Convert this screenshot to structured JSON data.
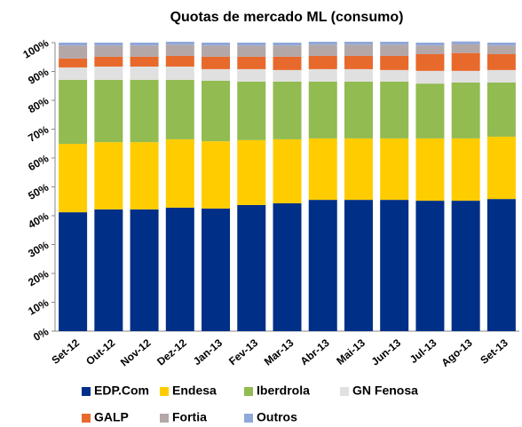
{
  "chart_data": {
    "type": "stacked_bar",
    "title": "Quotas de mercado ML (consumo)",
    "categories": [
      "Set-12",
      "Out-12",
      "Nov-12",
      "Dez-12",
      "Jan-13",
      "Fev-13",
      "Mar-13",
      "Abr-13",
      "Mai-13",
      "Jun-13",
      "Jul-13",
      "Ago-13",
      "Set-13"
    ],
    "series": [
      {
        "name": "EDP.Com",
        "color": "#002f87",
        "values": [
          41.2,
          42.2,
          42.2,
          42.8,
          42.5,
          43.7,
          44.3,
          45.5,
          45.5,
          45.5,
          45.2,
          45.2,
          45.8
        ]
      },
      {
        "name": "Endesa",
        "color": "#ffcc00",
        "values": [
          23.7,
          23.3,
          23.3,
          23.7,
          23.3,
          22.5,
          22.2,
          21.3,
          21.3,
          21.3,
          21.6,
          21.6,
          21.6
        ]
      },
      {
        "name": "Iberdrola",
        "color": "#92bb52",
        "values": [
          22.2,
          21.6,
          21.6,
          20.6,
          21.0,
          20.3,
          20.0,
          19.7,
          19.7,
          19.7,
          19.0,
          19.4,
          18.8
        ]
      },
      {
        "name": "GN Fenosa",
        "color": "#e0e0e0",
        "values": [
          4.3,
          4.6,
          4.6,
          4.6,
          4.0,
          4.3,
          4.0,
          4.3,
          4.3,
          4.0,
          4.4,
          4.0,
          4.3
        ]
      },
      {
        "name": "GALP",
        "color": "#e8692c",
        "values": [
          3.1,
          3.4,
          3.4,
          3.7,
          4.3,
          4.3,
          4.6,
          4.6,
          4.6,
          4.9,
          5.8,
          6.2,
          5.5
        ]
      },
      {
        "name": "Fortia",
        "color": "#b3a7a8",
        "values": [
          4.5,
          3.9,
          3.9,
          3.9,
          3.9,
          3.9,
          3.9,
          3.9,
          3.9,
          3.9,
          3.0,
          3.0,
          3.0
        ]
      },
      {
        "name": "Outros",
        "color": "#8fa8d8",
        "values": [
          1,
          1,
          1,
          1,
          1,
          1,
          1,
          1,
          1,
          1,
          1,
          1,
          1
        ]
      }
    ],
    "ylim": [
      0,
      100
    ],
    "yticks": [
      {
        "value": 0,
        "label": "0%"
      },
      {
        "value": 10,
        "label": "10%"
      },
      {
        "value": 20,
        "label": "20%"
      },
      {
        "value": 30,
        "label": "30%"
      },
      {
        "value": 40,
        "label": "40%"
      },
      {
        "value": 50,
        "label": "50%"
      },
      {
        "value": 60,
        "label": "60%"
      },
      {
        "value": 70,
        "label": "70%"
      },
      {
        "value": 80,
        "label": "80%"
      },
      {
        "value": 90,
        "label": "90%"
      },
      {
        "value": 100,
        "label": "100%"
      }
    ]
  }
}
